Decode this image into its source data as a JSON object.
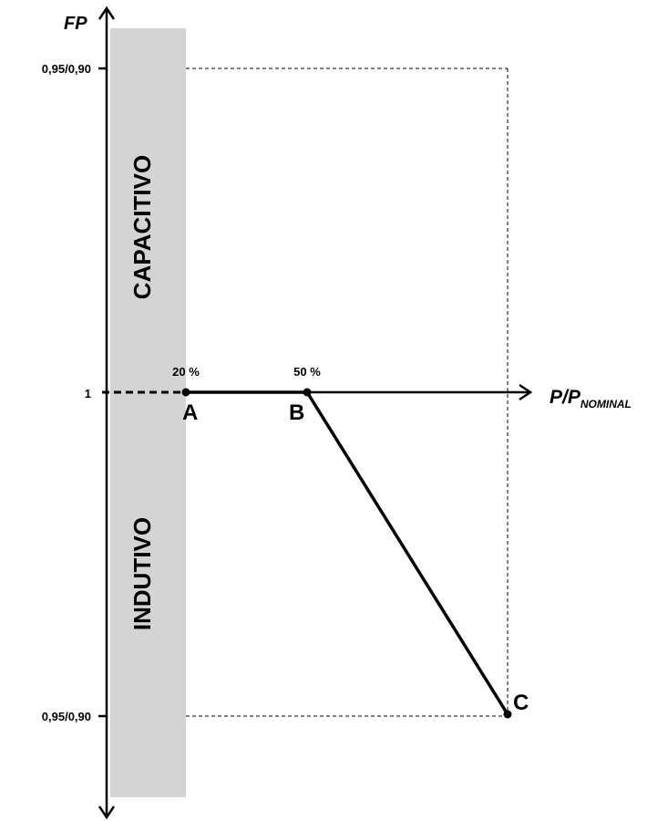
{
  "axes": {
    "y_title": "FP",
    "x_title_main": "P/P",
    "x_title_subscript": "NOMINAL",
    "y_tick_top": "0,95/0,90",
    "y_tick_middle": "1",
    "y_tick_bottom": "0,95/0,90"
  },
  "regions": {
    "upper": "CAPACITIVO",
    "lower": "INDUTIVO"
  },
  "point_annotations": {
    "a_percent": "20 %",
    "b_percent": "50 %"
  },
  "points": {
    "a": "A",
    "b": "B",
    "c": "C"
  },
  "colors": {
    "band": "#d4d4d4",
    "line": "#000000"
  }
}
